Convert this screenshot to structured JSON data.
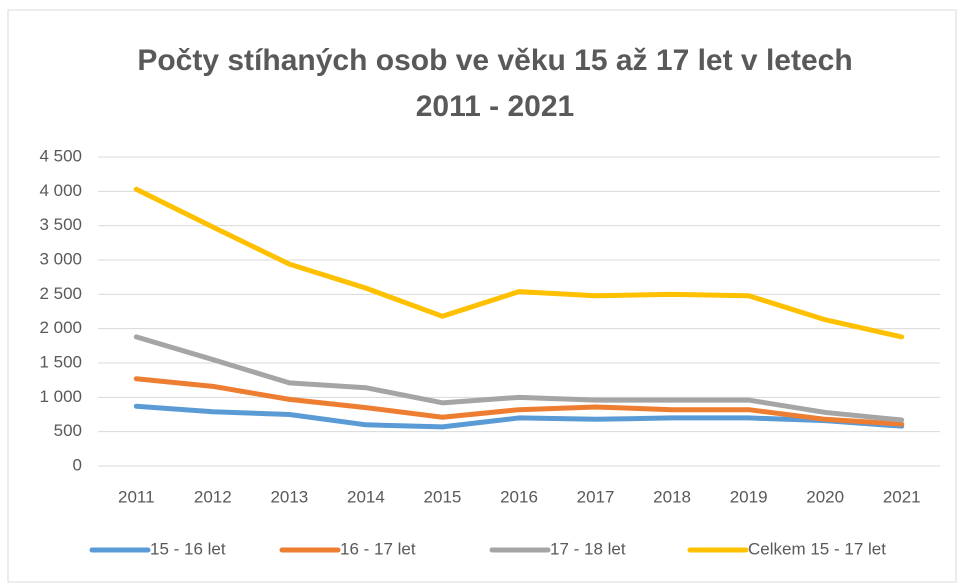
{
  "chart_data": {
    "type": "line",
    "title": "Počty stíhaných osob ve věku 15 až 17 let v letech 2011 - 2021",
    "categories": [
      "2011",
      "2012",
      "2013",
      "2014",
      "2015",
      "2016",
      "2017",
      "2018",
      "2019",
      "2020",
      "2021"
    ],
    "series": [
      {
        "name": "15 - 16 let",
        "color": "#5b9bd5",
        "values": [
          870,
          790,
          750,
          600,
          570,
          700,
          680,
          700,
          700,
          660,
          580
        ]
      },
      {
        "name": "16 - 17 let",
        "color": "#ed7d31",
        "values": [
          1270,
          1160,
          970,
          850,
          710,
          820,
          860,
          820,
          820,
          680,
          610
        ]
      },
      {
        "name": "17 - 18 let",
        "color": "#a5a5a5",
        "values": [
          1880,
          1550,
          1210,
          1140,
          920,
          1000,
          960,
          960,
          960,
          780,
          670
        ]
      },
      {
        "name": "Celkem 15 - 17 let",
        "color": "#ffc000",
        "values": [
          4030,
          3480,
          2940,
          2590,
          2180,
          2540,
          2480,
          2500,
          2480,
          2130,
          1880
        ]
      }
    ],
    "ylim": [
      0,
      4500
    ],
    "yticks": [
      0,
      500,
      {
        "value": 1000,
        "label": "1 000"
      },
      {
        "value": 1500,
        "label": "1 500"
      },
      {
        "value": 2000,
        "label": "2 000"
      },
      {
        "value": 2500,
        "label": "2 500"
      },
      {
        "value": 3000,
        "label": "3 000"
      },
      {
        "value": 3500,
        "label": "3 500"
      },
      {
        "value": 4000,
        "label": "4 000"
      },
      {
        "value": 4500,
        "label": "4 500"
      }
    ],
    "grid": true,
    "legend": "bottom"
  }
}
